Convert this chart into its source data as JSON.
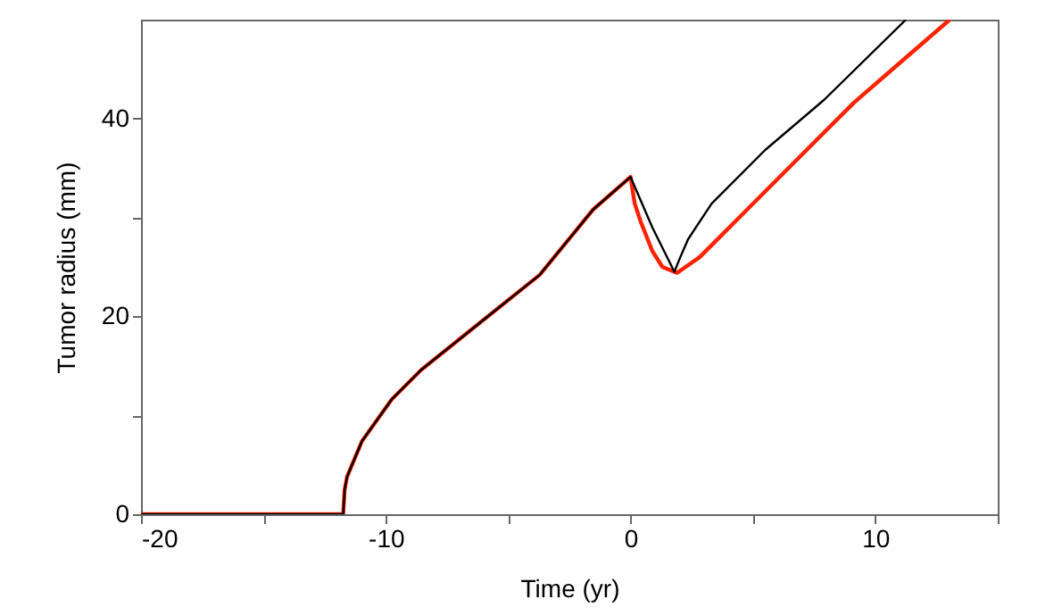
{
  "chart_data": {
    "type": "line",
    "xlabel": "Time (yr)",
    "ylabel": "Tumor radius (mm)",
    "xlim": [
      -20,
      15
    ],
    "ylim": [
      0,
      50
    ],
    "xticks": [
      -20,
      {
        "value": -15,
        "label": null
      },
      -10,
      {
        "value": -5,
        "label": null
      },
      0,
      {
        "value": 5,
        "label": null
      },
      10,
      {
        "value": 15,
        "label": null
      }
    ],
    "yticks": [
      0,
      {
        "value": 10,
        "label": null
      },
      20,
      {
        "value": 30,
        "label": null
      },
      40
    ],
    "series": [
      {
        "color": "#ff2200",
        "x": [
          -20,
          -11.74,
          -11.68,
          -11.58,
          -10.97,
          -9.76,
          -8.55,
          -6.13,
          -3.71,
          -1.53,
          0,
          0.17,
          0.41,
          0.89,
          1.3,
          1.9,
          2.83,
          4.28,
          6.7,
          9.12,
          13.04
        ],
        "values": [
          0,
          0,
          2.5,
          3.8,
          7.4,
          11.6,
          14.6,
          19.4,
          24.2,
          30.8,
          34.1,
          31.4,
          29.6,
          26.6,
          25.0,
          24.4,
          26.0,
          29.6,
          35.6,
          41.6,
          50
        ]
      },
      {
        "color": "#000000",
        "x": [
          -20,
          -11.74,
          -11.68,
          -11.58,
          -10.97,
          -9.76,
          -8.55,
          -6.13,
          -3.71,
          -1.53,
          0,
          0.89,
          1.79,
          2.0,
          2.35,
          3.31,
          5.49,
          7.91,
          11.25
        ],
        "values": [
          0,
          0,
          2.5,
          3.8,
          7.4,
          11.6,
          14.6,
          19.4,
          24.2,
          30.8,
          34.1,
          29.0,
          24.5,
          25.8,
          27.8,
          31.4,
          36.8,
          41.9,
          50
        ]
      }
    ]
  }
}
